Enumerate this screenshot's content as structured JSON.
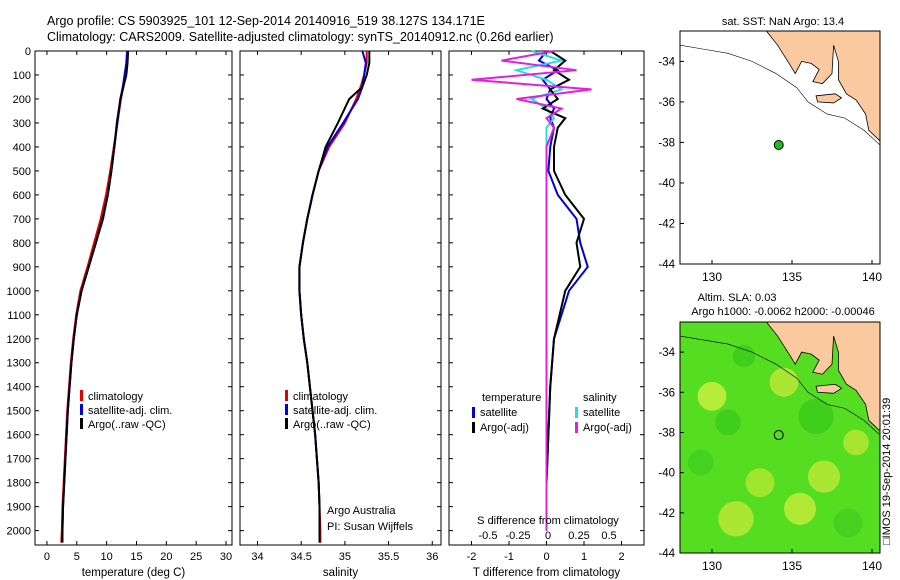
{
  "titles": {
    "line1": "Argo profile: CS 5903925_101 12-Sep-2014 20140916_519 38.127S 134.171E",
    "line2": "Climatology: CARS2009. Satellite-adjusted climatology: synTS_20140912.nc (0.26d earlier)"
  },
  "side_label": "□IMOS 19-Sep-2014 20:01:39",
  "colors": {
    "climatology": "#e00000",
    "satellite": "#0000dd",
    "argo": "#000000",
    "sal_satellite": "#22e0e0",
    "sal_argo": "#e020e0",
    "land": "#fbc9a0",
    "float_marker": "#22bb22",
    "sla_field": "#55dd22"
  },
  "chart_data": [
    {
      "type": "line",
      "xlabel": "temperature (deg C)",
      "ylabel": "",
      "xlim": [
        -2,
        31
      ],
      "ylim": [
        2060,
        0
      ],
      "xticks": [
        0,
        5,
        10,
        15,
        20,
        25,
        30
      ],
      "yticks": [
        0,
        100,
        200,
        300,
        400,
        500,
        600,
        700,
        800,
        900,
        1000,
        1100,
        1200,
        1300,
        1400,
        1500,
        1600,
        1700,
        1800,
        1900,
        2000
      ],
      "legend": [
        "climatology",
        "satellite-adj. clim.",
        "Argo(..raw -QC)"
      ],
      "depth": [
        0,
        50,
        100,
        150,
        200,
        300,
        400,
        500,
        600,
        700,
        800,
        900,
        1000,
        1100,
        1200,
        1300,
        1400,
        1500,
        1600,
        1700,
        1800,
        1900,
        2000,
        2050
      ],
      "series": [
        {
          "name": "climatology",
          "values": [
            13.4,
            13.3,
            13.1,
            12.8,
            12.4,
            11.8,
            11.2,
            10.6,
            9.9,
            9.0,
            7.9,
            6.8,
            5.6,
            4.9,
            4.4,
            4.0,
            3.7,
            3.4,
            3.2,
            3.0,
            2.8,
            2.6,
            2.5,
            2.4
          ]
        },
        {
          "name": "satellite-adj. clim.",
          "values": [
            13.5,
            13.3,
            13.0,
            12.7,
            12.3,
            11.8,
            11.3,
            10.8,
            10.2,
            9.4,
            8.2,
            7.0,
            5.8,
            5.0,
            4.5,
            4.1,
            3.8,
            3.5,
            3.3,
            3.1,
            2.9,
            2.7,
            2.6,
            2.5
          ]
        },
        {
          "name": "Argo(..raw -QC)",
          "values": [
            13.6,
            13.5,
            13.3,
            12.8,
            12.3,
            11.7,
            11.3,
            10.8,
            10.2,
            9.3,
            8.2,
            7.0,
            5.8,
            5.0,
            4.5,
            4.1,
            3.8,
            3.5,
            3.3,
            3.1,
            2.9,
            2.7,
            2.6,
            2.6
          ]
        }
      ]
    },
    {
      "type": "line",
      "xlabel": "salinity",
      "ylabel": "",
      "xlim": [
        33.8,
        36.1
      ],
      "ylim": [
        2060,
        0
      ],
      "xticks": [
        34,
        34.5,
        35,
        35.5,
        36
      ],
      "legend": [
        "climatology",
        "satellite-adj. clim.",
        "Argo(..raw -QC)"
      ],
      "annotation": [
        "Argo Australia",
        "PI: Susan Wijffels"
      ],
      "depth": [
        0,
        50,
        100,
        150,
        200,
        300,
        400,
        500,
        600,
        700,
        800,
        900,
        1000,
        1100,
        1200,
        1300,
        1400,
        1500,
        1600,
        1700,
        1800,
        1900,
        2000,
        2050
      ],
      "series": [
        {
          "name": "climatology",
          "values": [
            35.25,
            35.25,
            35.22,
            35.18,
            35.13,
            35.0,
            34.82,
            34.7,
            34.63,
            34.57,
            34.52,
            34.48,
            34.48,
            34.5,
            34.53,
            34.57,
            34.6,
            34.63,
            34.66,
            34.68,
            34.7,
            34.71,
            34.72,
            34.72
          ]
        },
        {
          "name": "satellite-adj. clim.",
          "values": [
            35.2,
            35.24,
            35.22,
            35.2,
            35.15,
            34.98,
            34.8,
            34.7,
            34.63,
            34.57,
            34.52,
            34.48,
            34.48,
            34.5,
            34.53,
            34.57,
            34.6,
            34.63,
            34.66,
            34.68,
            34.7,
            34.71,
            34.71,
            34.71
          ]
        },
        {
          "name": "Argo(..raw -QC)",
          "values": [
            35.28,
            35.28,
            35.25,
            35.2,
            35.05,
            34.92,
            34.78,
            34.7,
            34.63,
            34.57,
            34.52,
            34.48,
            34.48,
            34.5,
            34.53,
            34.57,
            34.6,
            34.63,
            34.66,
            34.68,
            34.7,
            34.71,
            34.71,
            34.71
          ]
        }
      ]
    },
    {
      "type": "line",
      "xlabel": "T difference from climatology",
      "ylabel": "",
      "top_axis_label": "S difference from climatology",
      "xlim": [
        -2.6,
        2.6
      ],
      "ylim": [
        2060,
        0
      ],
      "xticks": [
        -2,
        -1,
        0,
        1,
        2
      ],
      "top_ticks": [
        "-0.5",
        "-0.25",
        "0",
        "0.25",
        "0.5"
      ],
      "legend_left_title": "temperature",
      "legend_right_title": "salinity",
      "legend": [
        "satellite",
        "Argo(-adj)",
        "satellite",
        "Argo(-adj)"
      ],
      "depth": [
        0,
        40,
        80,
        120,
        160,
        200,
        240,
        280,
        320,
        400,
        500,
        600,
        700,
        800,
        900,
        1000,
        1200,
        1400,
        1600,
        1800,
        2000
      ],
      "series": [
        {
          "name": "temperature satellite",
          "values": [
            0.0,
            -0.2,
            0.3,
            -0.1,
            0.1,
            0.0,
            0.2,
            0.1,
            0.2,
            0.1,
            0.05,
            0.3,
            0.8,
            0.9,
            1.1,
            0.6,
            0.2,
            0.1,
            0.05,
            0.0,
            0.0
          ]
        },
        {
          "name": "temperature Argo(-adj)",
          "values": [
            0.1,
            0.5,
            0.2,
            0.6,
            0.1,
            0.3,
            -0.1,
            0.5,
            0.3,
            0.2,
            0.2,
            0.5,
            1.0,
            0.8,
            0.9,
            0.5,
            0.2,
            0.1,
            0.05,
            0.0,
            0.0
          ]
        },
        {
          "name": "salinity satellite",
          "values": [
            -0.1,
            0.1,
            -0.2,
            0.0,
            0.1,
            -0.1,
            0.0,
            0.05,
            0.0,
            0.0,
            0.0,
            0.0,
            0.0,
            0.0,
            0.0,
            0.0,
            0.0,
            0.0,
            0.0,
            0.0,
            0.0
          ]
        },
        {
          "name": "salinity Argo(-adj)",
          "values": [
            0.05,
            -0.3,
            0.2,
            -0.5,
            0.3,
            -0.2,
            0.1,
            0.0,
            0.05,
            0.0,
            0.0,
            0.0,
            0.0,
            0.0,
            0.0,
            0.0,
            0.0,
            0.0,
            0.0,
            0.0,
            0.0
          ]
        }
      ]
    },
    {
      "type": "scatter",
      "title": "sat. SST: NaN Argo: 13.4",
      "xlim": [
        128,
        140.5
      ],
      "ylim": [
        -44,
        -32.5
      ],
      "xticks": [
        130,
        135,
        140
      ],
      "yticks": [
        -34,
        -36,
        -38,
        -40,
        -42,
        -44
      ],
      "x": [
        134.171
      ],
      "y": [
        -38.127
      ]
    },
    {
      "type": "heatmap",
      "title": "Altim. SLA: 0.03",
      "subtitle": "Argo h1000: -0.0062 h2000: -0.00046",
      "xlim": [
        128,
        140.5
      ],
      "ylim": [
        -44,
        -32.5
      ],
      "xticks": [
        130,
        135,
        140
      ],
      "yticks": [
        -34,
        -36,
        -38,
        -40,
        -42,
        -44
      ],
      "x": [
        134.171
      ],
      "y": [
        -38.127
      ]
    }
  ]
}
